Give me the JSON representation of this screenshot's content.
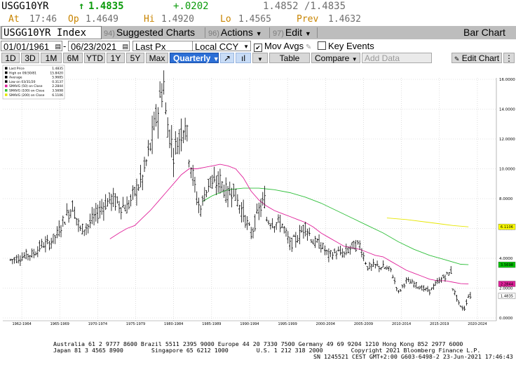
{
  "quote": {
    "ticker": "USGG10YR",
    "arrow": "↑",
    "last": "1.4835",
    "change": "+.0202",
    "bid_ask": "1.4852 /1.4835",
    "at_label": "At",
    "time": "17:46",
    "open_label": "Op",
    "open": "1.4649",
    "high_label": "Hi",
    "high": "1.4920",
    "low_label": "Lo",
    "low": "1.4565",
    "prev_label": "Prev",
    "prev": "1.4632"
  },
  "toolbar": {
    "security": "USGG10YR Index",
    "suggested_num": "94)",
    "suggested": "Suggested Charts",
    "actions_num": "96)",
    "actions": "Actions",
    "edit_num": "97)",
    "edit": "Edit",
    "title": "Bar Chart"
  },
  "controls": {
    "start_date": "01/01/1961",
    "end_date": "06/23/2021",
    "field": "Last Px",
    "currency": "Local CCY",
    "mov_avgs": "Mov Avgs",
    "key_events": "Key Events",
    "ranges": [
      "1D",
      "3D",
      "1M",
      "6M",
      "YTD",
      "1Y",
      "5Y",
      "Max"
    ],
    "period": "Quarterly",
    "table": "Table",
    "compare": "Compare",
    "add_data": "Add Data",
    "edit_chart": "Edit Chart"
  },
  "legend": [
    {
      "label": "Last Price",
      "value": "1.4835"
    },
    {
      "label": "High on 09/30/81",
      "value": "15.8420"
    },
    {
      "label": "Average",
      "value": "5.9685"
    },
    {
      "label": "Low on 03/31/20",
      "value": "0.3137"
    },
    {
      "label": "SMAVG (50)  on Close",
      "value": "2.2844"
    },
    {
      "label": "SMAVG (100)  on Close",
      "value": "3.5698"
    },
    {
      "label": "SMAVG (200)  on Close",
      "value": "6.1106"
    }
  ],
  "chart_data": {
    "type": "bar",
    "x_ticks": [
      "1962-1964",
      "1965-1969",
      "1970-1974",
      "1975-1979",
      "1980-1984",
      "1985-1989",
      "1990-1994",
      "1995-1999",
      "2000-2004",
      "2005-2009",
      "2010-2014",
      "2015-2019",
      "2020-2024"
    ],
    "y_ticks": [
      "16.0000",
      "14.0000",
      "12.0000",
      "10.0000",
      "8.0000",
      "6.0000",
      "4.0000",
      "2.0000",
      "0.0000"
    ],
    "ylim": [
      0,
      16.5
    ],
    "colors": {
      "price": "#000000",
      "sma50": "#e0209a",
      "sma100": "#2fbf3a",
      "sma200": "#e6e600",
      "grid": "#c8c8c8"
    },
    "last_labels": [
      {
        "value": "6.1106",
        "bg": "#ffff00"
      },
      {
        "value": "3.5698",
        "bg": "#00c000"
      },
      {
        "value": "2.2844",
        "bg": "#e0209a"
      },
      {
        "value": "1.4835",
        "bg": "#ffffff"
      }
    ],
    "price_points": [
      [
        1962,
        3.9
      ],
      [
        1963,
        4.0
      ],
      [
        1964,
        4.2
      ],
      [
        1965,
        4.3
      ],
      [
        1966,
        4.9
      ],
      [
        1967,
        5.0
      ],
      [
        1968,
        5.6
      ],
      [
        1969,
        6.7
      ],
      [
        1970,
        7.5
      ],
      [
        1971,
        5.9
      ],
      [
        1972,
        6.2
      ],
      [
        1973,
        6.9
      ],
      [
        1974,
        7.6
      ],
      [
        1975,
        8.0
      ],
      [
        1976,
        7.6
      ],
      [
        1977,
        7.4
      ],
      [
        1978,
        8.4
      ],
      [
        1979,
        9.4
      ],
      [
        1980,
        11.5
      ],
      [
        1981,
        14.0
      ],
      [
        1981.75,
        15.8
      ],
      [
        1982,
        13.6
      ],
      [
        1983,
        11.1
      ],
      [
        1984,
        12.5
      ],
      [
        1984.5,
        13.3
      ],
      [
        1985,
        11.0
      ],
      [
        1986,
        8.0
      ],
      [
        1986.5,
        7.3
      ],
      [
        1987,
        8.3
      ],
      [
        1987.75,
        9.4
      ],
      [
        1988,
        8.8
      ],
      [
        1989,
        9.2
      ],
      [
        1990,
        8.2
      ],
      [
        1990.75,
        8.8
      ],
      [
        1991,
        8.1
      ],
      [
        1992,
        7.0
      ],
      [
        1993,
        5.6
      ],
      [
        1994,
        7.2
      ],
      [
        1994.75,
        7.9
      ],
      [
        1995,
        6.6
      ],
      [
        1996,
        6.4
      ],
      [
        1997,
        6.3
      ],
      [
        1998,
        4.9
      ],
      [
        1999,
        5.4
      ],
      [
        2000,
        6.2
      ],
      [
        2001,
        5.1
      ],
      [
        2002,
        4.9
      ],
      [
        2003,
        4.2
      ],
      [
        2004,
        4.4
      ],
      [
        2005,
        4.3
      ],
      [
        2006,
        4.8
      ],
      [
        2007,
        4.9
      ],
      [
        2008,
        3.4
      ],
      [
        2009,
        3.5
      ],
      [
        2010,
        3.4
      ],
      [
        2011,
        3.2
      ],
      [
        2012,
        1.7
      ],
      [
        2013,
        2.5
      ],
      [
        2014,
        2.3
      ],
      [
        2015,
        2.0
      ],
      [
        2016,
        1.8
      ],
      [
        2017,
        2.4
      ],
      [
        2018,
        2.8
      ],
      [
        2018.75,
        3.1
      ],
      [
        2019,
        2.0
      ],
      [
        2020,
        0.7
      ],
      [
        2020.5,
        0.65
      ],
      [
        2021,
        1.48
      ]
    ],
    "sma50_points": [
      [
        1974.8,
        5.3
      ],
      [
        1976,
        5.7
      ],
      [
        1977,
        6.0
      ],
      [
        1978,
        6.2
      ],
      [
        1979,
        6.7
      ],
      [
        1980,
        7.2
      ],
      [
        1981,
        7.8
      ],
      [
        1982,
        8.4
      ],
      [
        1983,
        9.0
      ],
      [
        1984,
        9.6
      ],
      [
        1985,
        10.0
      ],
      [
        1986,
        10.0
      ],
      [
        1987,
        10.1
      ],
      [
        1988,
        10.2
      ],
      [
        1989,
        10.3
      ],
      [
        1990,
        10.2
      ],
      [
        1991,
        10.0
      ],
      [
        1992,
        9.4
      ],
      [
        1993,
        8.5
      ],
      [
        1994,
        7.9
      ],
      [
        1995,
        7.5
      ],
      [
        1996,
        7.2
      ],
      [
        1997,
        7.0
      ],
      [
        1998,
        6.8
      ],
      [
        1999,
        6.6
      ],
      [
        2000,
        6.4
      ],
      [
        2001,
        6.1
      ],
      [
        2002,
        5.7
      ],
      [
        2003,
        5.4
      ],
      [
        2004,
        5.1
      ],
      [
        2005,
        4.8
      ],
      [
        2006,
        4.7
      ],
      [
        2007,
        4.6
      ],
      [
        2008,
        4.4
      ],
      [
        2009,
        4.2
      ],
      [
        2010,
        4.1
      ],
      [
        2011,
        3.8
      ],
      [
        2012,
        3.5
      ],
      [
        2013,
        3.2
      ],
      [
        2014,
        3.0
      ],
      [
        2015,
        2.8
      ],
      [
        2016,
        2.6
      ],
      [
        2017,
        2.5
      ],
      [
        2018,
        2.5
      ],
      [
        2019,
        2.4
      ],
      [
        2020,
        2.3
      ],
      [
        2021,
        2.28
      ]
    ],
    "sma100_points": [
      [
        1986.7,
        7.8
      ],
      [
        1988,
        8.2
      ],
      [
        1990,
        8.6
      ],
      [
        1992,
        8.7
      ],
      [
        1994,
        8.7
      ],
      [
        1996,
        8.6
      ],
      [
        1998,
        8.4
      ],
      [
        2000,
        8.1
      ],
      [
        2002,
        7.7
      ],
      [
        2004,
        7.2
      ],
      [
        2006,
        6.7
      ],
      [
        2008,
        6.2
      ],
      [
        2010,
        5.7
      ],
      [
        2012,
        5.1
      ],
      [
        2014,
        4.6
      ],
      [
        2016,
        4.2
      ],
      [
        2018,
        3.9
      ],
      [
        2020,
        3.6
      ],
      [
        2021,
        3.57
      ]
    ],
    "sma200_points": [
      [
        2010.5,
        6.7
      ],
      [
        2013,
        6.6
      ],
      [
        2016,
        6.4
      ],
      [
        2019,
        6.2
      ],
      [
        2021,
        6.11
      ]
    ]
  },
  "footer": {
    "line1": "Australia 61 2 9777 8600 Brazil 5511 2395 9000 Europe 44 20 7330 7500 Germany 49 69 9204 1210 Hong Kong 852 2977 6000",
    "line2": "Japan 81 3 4565 8900        Singapore 65 6212 1000        U.S. 1 212 318 2000        Copyright 2021 Bloomberg Finance L.P.",
    "line3": "SN 1245521 CEST GMT+2:00 G603-6498-2 23-Jun-2021 17:46:43"
  }
}
